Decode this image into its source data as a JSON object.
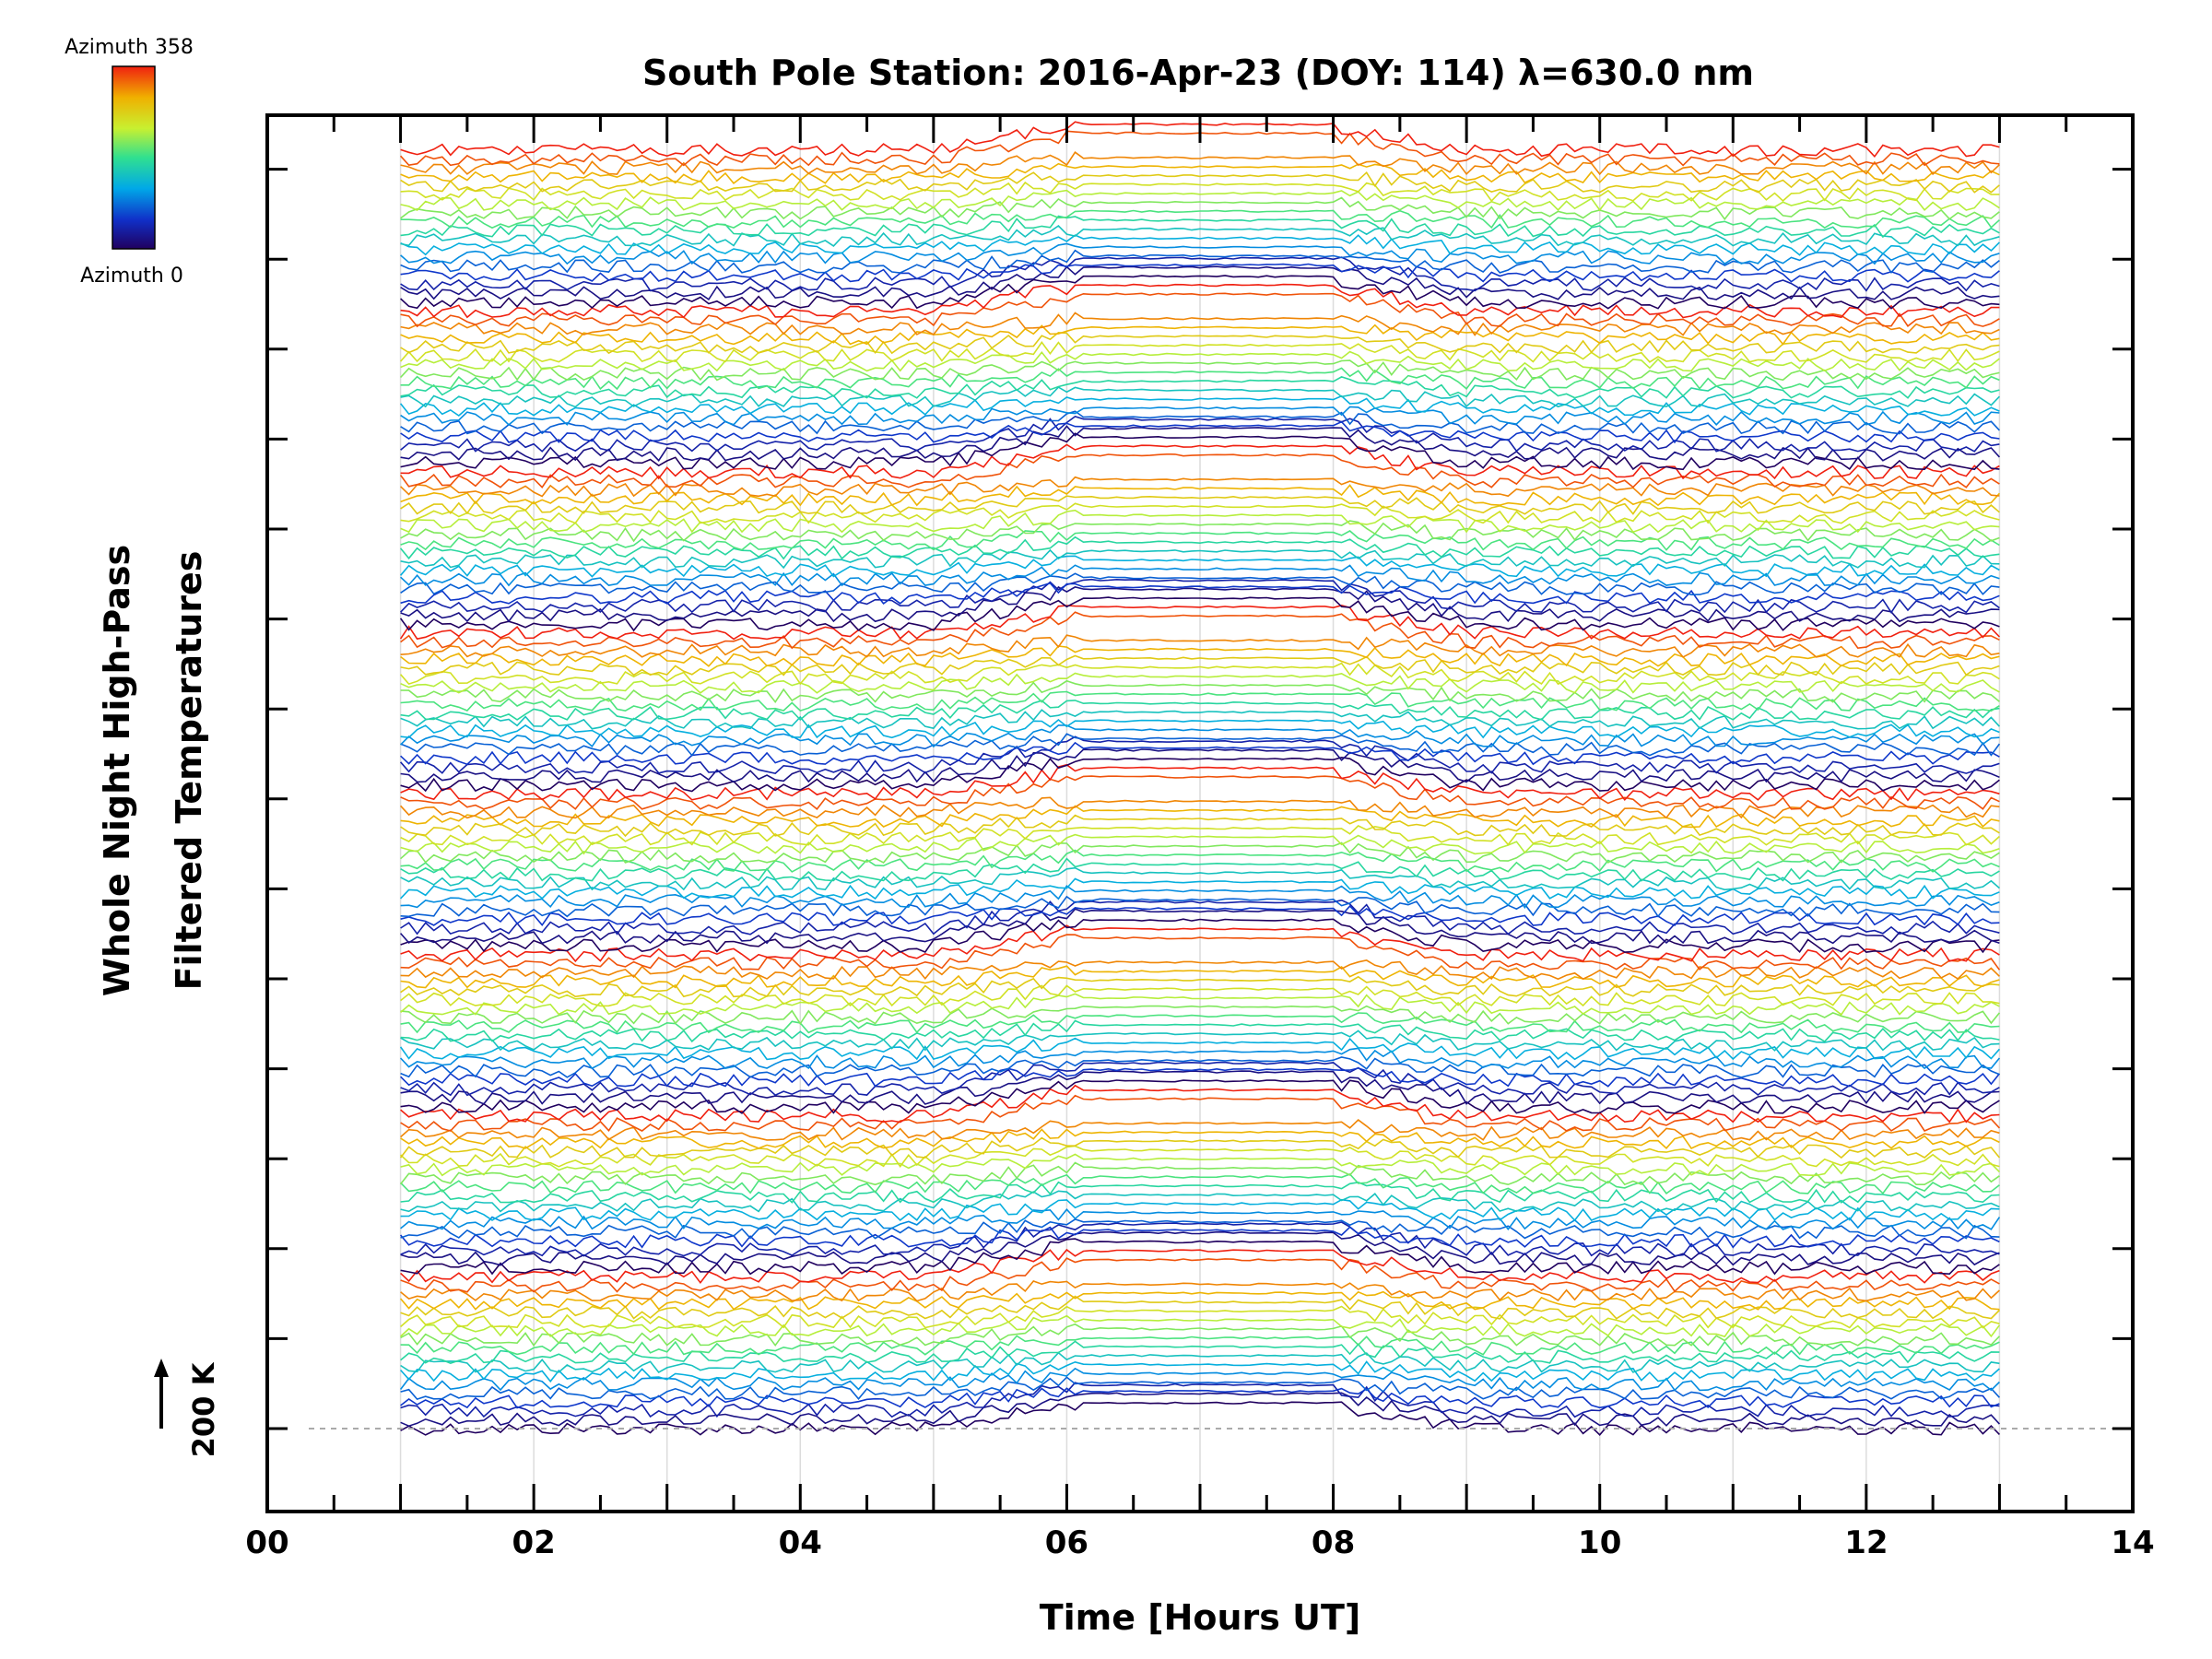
{
  "chart_data": {
    "type": "line",
    "title": "South Pole Station: 2016-Apr-23 (DOY: 114) λ=630.0 nm",
    "xlabel": "Time [Hours UT]",
    "ylabel_lines": [
      "Whole Night High-Pass",
      "Filtered Temperatures"
    ],
    "xlim": [
      0,
      14
    ],
    "x_tick_labels": [
      "00",
      "02",
      "04",
      "06",
      "08",
      "10",
      "12",
      "14"
    ],
    "x_tick_values": [
      0,
      2,
      4,
      6,
      8,
      10,
      12,
      14
    ],
    "data_range_hours": [
      1.0,
      13.0
    ],
    "data_gap_hours": [
      6.1,
      8.0
    ],
    "num_traces": 144,
    "num_groups": 8,
    "traces_per_group": 18,
    "trace_offset_step": 1,
    "trace_azimuth_range_deg": [
      0,
      358
    ],
    "scale_bar": {
      "label": "200 K",
      "value_K": 200
    },
    "colorbar": {
      "label_top": "Azimuth 358",
      "label_bottom": "Azimuth 0",
      "colormap": "rainbow",
      "colors": [
        "#20005f",
        "#1030c8",
        "#00a8e8",
        "#30e090",
        "#c8f030",
        "#f0b000",
        "#f02010"
      ]
    }
  }
}
